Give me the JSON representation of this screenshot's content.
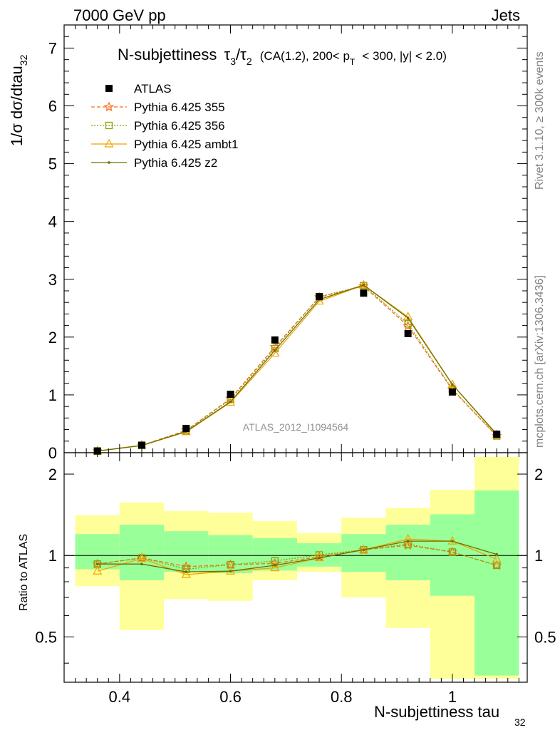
{
  "header": {
    "left": "7000 GeV pp",
    "right": "Jets"
  },
  "title": {
    "main": "N-subjettiness",
    "tau3": "τ",
    "tau3_sub": "3",
    "slash": "/",
    "tau2": "τ",
    "tau2_sub": "2",
    "cuts_a": "(CA(1.2), 200< p",
    "cuts_sub": "T",
    "cuts_b": "< 300, |y| < 2.0)"
  },
  "side_labels": {
    "rivet": "Rivet 3.1.10, ≥ 300k events",
    "mcplots": "mcplots.cern.ch [arXiv:1306.3436]"
  },
  "analysis_id": "ATLAS_2012_I1094564",
  "axes": {
    "top_ylabel": "1/σ dσ/dtau",
    "top_ylabel_sub": "32",
    "bottom_ylabel": "Ratio to ATLAS",
    "xlabel": "N-subjettiness tau",
    "xlabel_sub": "32"
  },
  "legend": [
    {
      "label": "ATLAS"
    },
    {
      "label": "Pythia 6.425 355"
    },
    {
      "label": "Pythia 6.425 356"
    },
    {
      "label": "Pythia 6.425 ambt1"
    },
    {
      "label": "Pythia 6.425 z2"
    }
  ],
  "colors": {
    "data": "#000000",
    "p355": "#ff6a1a",
    "p356": "#8aa100",
    "ambt1": "#f0a400",
    "z2": "#6e6e00",
    "band_inner": "#99ff99",
    "band_outer": "#ffff99"
  },
  "chart_data": [
    {
      "type": "scatter",
      "panel": "main",
      "xlim": [
        0.3,
        1.135
      ],
      "ylim": [
        0,
        7.4
      ],
      "x_ticks": [
        0.4,
        0.6,
        0.8,
        1
      ],
      "y_ticks": [
        0,
        1,
        2,
        3,
        4,
        5,
        6,
        7
      ],
      "ylabel": "1/σ dσ/dtau32",
      "x": [
        0.36,
        0.44,
        0.52,
        0.6,
        0.68,
        0.76,
        0.84,
        0.92,
        1.0,
        1.08
      ],
      "bin_edges": [
        0.32,
        0.4,
        0.48,
        0.56,
        0.64,
        0.72,
        0.8,
        0.88,
        0.96,
        1.04,
        1.12
      ],
      "series": [
        {
          "name": "ATLAS",
          "values": [
            0.03,
            0.13,
            0.42,
            1.01,
            1.95,
            2.7,
            2.76,
            2.06,
            1.05,
            0.32
          ]
        },
        {
          "name": "Pythia 6.425 355",
          "values": [
            0.028,
            0.128,
            0.385,
            0.935,
            1.83,
            2.69,
            2.88,
            2.19,
            1.09,
            0.29
          ]
        },
        {
          "name": "Pythia 6.425 356",
          "values": [
            0.028,
            0.128,
            0.376,
            0.92,
            1.8,
            2.7,
            2.89,
            2.23,
            1.1,
            0.29
          ]
        },
        {
          "name": "Pythia 6.425 ambt1",
          "values": [
            0.026,
            0.128,
            0.36,
            0.87,
            1.72,
            2.62,
            2.9,
            2.35,
            1.18,
            0.31
          ]
        },
        {
          "name": "Pythia 6.425 z2",
          "values": [
            0.028,
            0.123,
            0.365,
            0.88,
            1.77,
            2.65,
            2.9,
            2.33,
            1.18,
            0.32
          ]
        }
      ]
    },
    {
      "type": "line",
      "panel": "ratio",
      "xlim": [
        0.3,
        1.135
      ],
      "ylim": [
        0.34,
        2.4
      ],
      "log_y": true,
      "y_ticks": [
        0.5,
        1,
        2
      ],
      "ylabel": "Ratio to ATLAS",
      "xlabel": "N-subjettiness tau32",
      "x": [
        0.36,
        0.44,
        0.52,
        0.6,
        0.68,
        0.76,
        0.84,
        0.92,
        1.0,
        1.08
      ],
      "bin_edges": [
        0.32,
        0.4,
        0.48,
        0.56,
        0.64,
        0.72,
        0.8,
        0.88,
        0.96,
        1.04,
        1.12
      ],
      "band_inner": {
        "low": [
          0.89,
          0.81,
          0.87,
          0.86,
          0.88,
          0.91,
          0.87,
          0.81,
          0.71,
          0.36
        ],
        "high": [
          1.2,
          1.3,
          1.23,
          1.19,
          1.16,
          1.11,
          1.2,
          1.3,
          1.42,
          1.74
        ]
      },
      "band_outer": {
        "low": [
          0.77,
          0.53,
          0.69,
          0.68,
          0.81,
          0.87,
          0.7,
          0.54,
          0.35,
          0.35
        ],
        "high": [
          1.41,
          1.57,
          1.46,
          1.44,
          1.34,
          1.21,
          1.38,
          1.5,
          1.75,
          2.32
        ]
      },
      "series": [
        {
          "name": "Pythia 6.425 355",
          "values": [
            0.93,
            0.98,
            0.91,
            0.925,
            0.935,
            0.99,
            1.05,
            1.09,
            1.03,
            0.92
          ]
        },
        {
          "name": "Pythia 6.425 356",
          "values": [
            0.93,
            0.98,
            0.89,
            0.925,
            0.955,
            1.005,
            1.05,
            1.1,
            1.03,
            0.92
          ]
        },
        {
          "name": "Pythia 6.425 ambt1",
          "values": [
            0.875,
            0.975,
            0.85,
            0.875,
            0.9,
            0.98,
            1.05,
            1.15,
            1.13,
            0.97
          ]
        },
        {
          "name": "Pythia 6.425 z2",
          "values": [
            0.93,
            0.93,
            0.87,
            0.875,
            0.92,
            0.98,
            1.05,
            1.13,
            1.13,
            1.01
          ]
        }
      ]
    }
  ]
}
